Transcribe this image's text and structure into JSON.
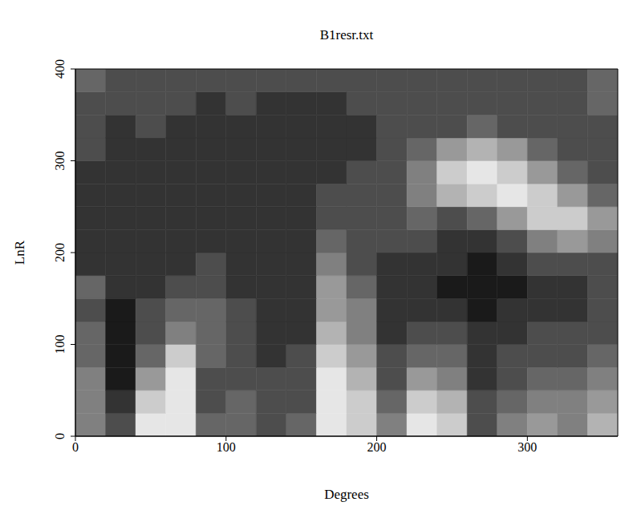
{
  "chart_data": {
    "type": "heatmap",
    "title": "B1resr.txt",
    "x_label": "Degrees",
    "y_label": "LnR",
    "xlim": [
      0,
      360
    ],
    "ylim": [
      0,
      400
    ],
    "xticks": [
      0,
      100,
      200,
      300
    ],
    "yticks": [
      0,
      100,
      200,
      300,
      400
    ],
    "grid": false,
    "color": "gray",
    "x_edges": [
      0,
      20,
      40,
      60,
      80,
      100,
      120,
      140,
      160,
      180,
      200,
      220,
      240,
      260,
      280,
      300,
      320,
      340,
      360
    ],
    "y_edges": [
      0,
      25,
      50,
      75,
      100,
      125,
      150,
      175,
      200,
      225,
      250,
      275,
      300,
      325,
      350,
      375,
      400
    ],
    "cells": [
      [
        0.5,
        0.3,
        0.9,
        0.9,
        0.4,
        0.4,
        0.3,
        0.4,
        0.9,
        0.8,
        0.5,
        0.9,
        0.8,
        0.3,
        0.5,
        0.6,
        0.5,
        0.7
      ],
      [
        0.5,
        0.2,
        0.8,
        0.9,
        0.3,
        0.4,
        0.3,
        0.3,
        0.9,
        0.8,
        0.4,
        0.8,
        0.7,
        0.3,
        0.4,
        0.5,
        0.5,
        0.6
      ],
      [
        0.5,
        0.1,
        0.6,
        0.9,
        0.3,
        0.3,
        0.3,
        0.3,
        0.9,
        0.7,
        0.3,
        0.6,
        0.5,
        0.2,
        0.3,
        0.4,
        0.4,
        0.5
      ],
      [
        0.4,
        0.1,
        0.4,
        0.8,
        0.4,
        0.3,
        0.2,
        0.3,
        0.8,
        0.6,
        0.3,
        0.4,
        0.4,
        0.2,
        0.3,
        0.3,
        0.3,
        0.4
      ],
      [
        0.4,
        0.1,
        0.3,
        0.5,
        0.4,
        0.3,
        0.2,
        0.2,
        0.7,
        0.5,
        0.2,
        0.3,
        0.3,
        0.2,
        0.2,
        0.3,
        0.3,
        0.3
      ],
      [
        0.3,
        0.1,
        0.3,
        0.4,
        0.4,
        0.3,
        0.2,
        0.2,
        0.6,
        0.5,
        0.2,
        0.2,
        0.2,
        0.1,
        0.2,
        0.2,
        0.2,
        0.3
      ],
      [
        0.4,
        0.2,
        0.2,
        0.3,
        0.3,
        0.2,
        0.2,
        0.2,
        0.6,
        0.4,
        0.2,
        0.2,
        0.1,
        0.1,
        0.1,
        0.2,
        0.2,
        0.3
      ],
      [
        0.2,
        0.2,
        0.2,
        0.2,
        0.3,
        0.2,
        0.2,
        0.2,
        0.5,
        0.3,
        0.2,
        0.2,
        0.2,
        0.1,
        0.2,
        0.3,
        0.3,
        0.3
      ],
      [
        0.2,
        0.2,
        0.2,
        0.2,
        0.2,
        0.2,
        0.2,
        0.2,
        0.4,
        0.3,
        0.3,
        0.3,
        0.2,
        0.2,
        0.3,
        0.5,
        0.6,
        0.5
      ],
      [
        0.2,
        0.2,
        0.2,
        0.2,
        0.2,
        0.2,
        0.2,
        0.2,
        0.3,
        0.3,
        0.3,
        0.4,
        0.3,
        0.4,
        0.6,
        0.8,
        0.8,
        0.6
      ],
      [
        0.2,
        0.2,
        0.2,
        0.2,
        0.2,
        0.2,
        0.2,
        0.2,
        0.3,
        0.3,
        0.3,
        0.5,
        0.7,
        0.8,
        0.9,
        0.8,
        0.6,
        0.4
      ],
      [
        0.2,
        0.2,
        0.2,
        0.2,
        0.2,
        0.2,
        0.2,
        0.2,
        0.2,
        0.3,
        0.3,
        0.5,
        0.8,
        0.9,
        0.8,
        0.6,
        0.4,
        0.3
      ],
      [
        0.3,
        0.2,
        0.2,
        0.2,
        0.2,
        0.2,
        0.2,
        0.2,
        0.2,
        0.2,
        0.3,
        0.4,
        0.6,
        0.7,
        0.6,
        0.4,
        0.3,
        0.3
      ],
      [
        0.3,
        0.2,
        0.3,
        0.2,
        0.2,
        0.2,
        0.2,
        0.2,
        0.2,
        0.2,
        0.3,
        0.3,
        0.3,
        0.4,
        0.3,
        0.3,
        0.3,
        0.3
      ],
      [
        0.3,
        0.3,
        0.3,
        0.3,
        0.2,
        0.3,
        0.2,
        0.2,
        0.2,
        0.3,
        0.3,
        0.3,
        0.3,
        0.3,
        0.3,
        0.3,
        0.3,
        0.4
      ],
      [
        0.4,
        0.3,
        0.3,
        0.3,
        0.3,
        0.3,
        0.3,
        0.3,
        0.3,
        0.3,
        0.3,
        0.3,
        0.3,
        0.3,
        0.3,
        0.3,
        0.3,
        0.4
      ]
    ]
  }
}
